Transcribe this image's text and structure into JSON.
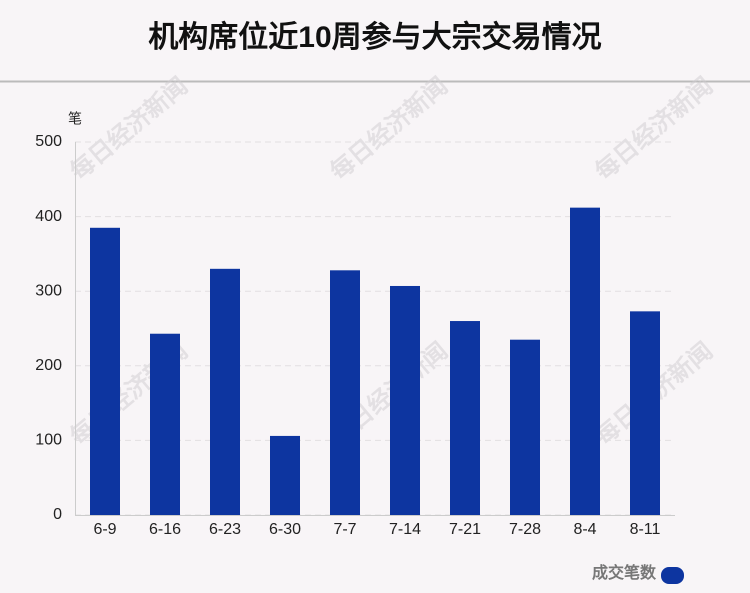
{
  "chart_data": {
    "type": "bar",
    "title": "机构席位近10周参与大宗交易情况",
    "y_label": "笔",
    "categories": [
      "6-9",
      "6-16",
      "6-23",
      "6-30",
      "7-7",
      "7-14",
      "7-21",
      "7-28",
      "8-4",
      "8-11"
    ],
    "series": [
      {
        "name": "成交笔数",
        "color": "#0d35a0",
        "values": [
          385,
          243,
          330,
          106,
          328,
          307,
          260,
          235,
          412,
          273
        ]
      }
    ],
    "ylim": [
      0,
      500
    ],
    "yticks": [
      0,
      100,
      200,
      300,
      400,
      500
    ],
    "grid": true,
    "legend": "bottom-right",
    "watermark": "每日经济新闻"
  }
}
